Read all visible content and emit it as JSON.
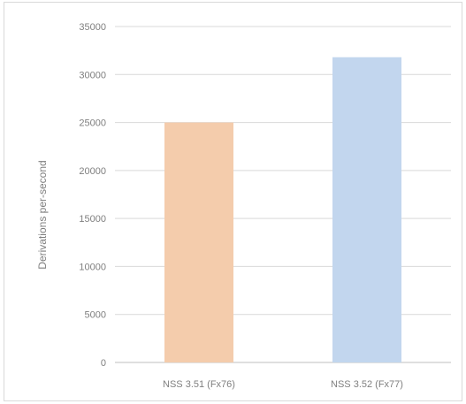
{
  "chart_data": {
    "type": "bar",
    "title": "",
    "xlabel": "",
    "ylabel": "Derivations per-second",
    "categories": [
      "NSS 3.51 (Fx76)",
      "NSS 3.52 (Fx77)"
    ],
    "values": [
      25000,
      31800
    ],
    "colors": [
      "#f4ccac",
      "#c2d6ee"
    ],
    "ylim": [
      0,
      35000
    ],
    "yticks": [
      0,
      5000,
      10000,
      15000,
      20000,
      25000,
      30000,
      35000
    ],
    "grid": true,
    "legend": "none"
  }
}
